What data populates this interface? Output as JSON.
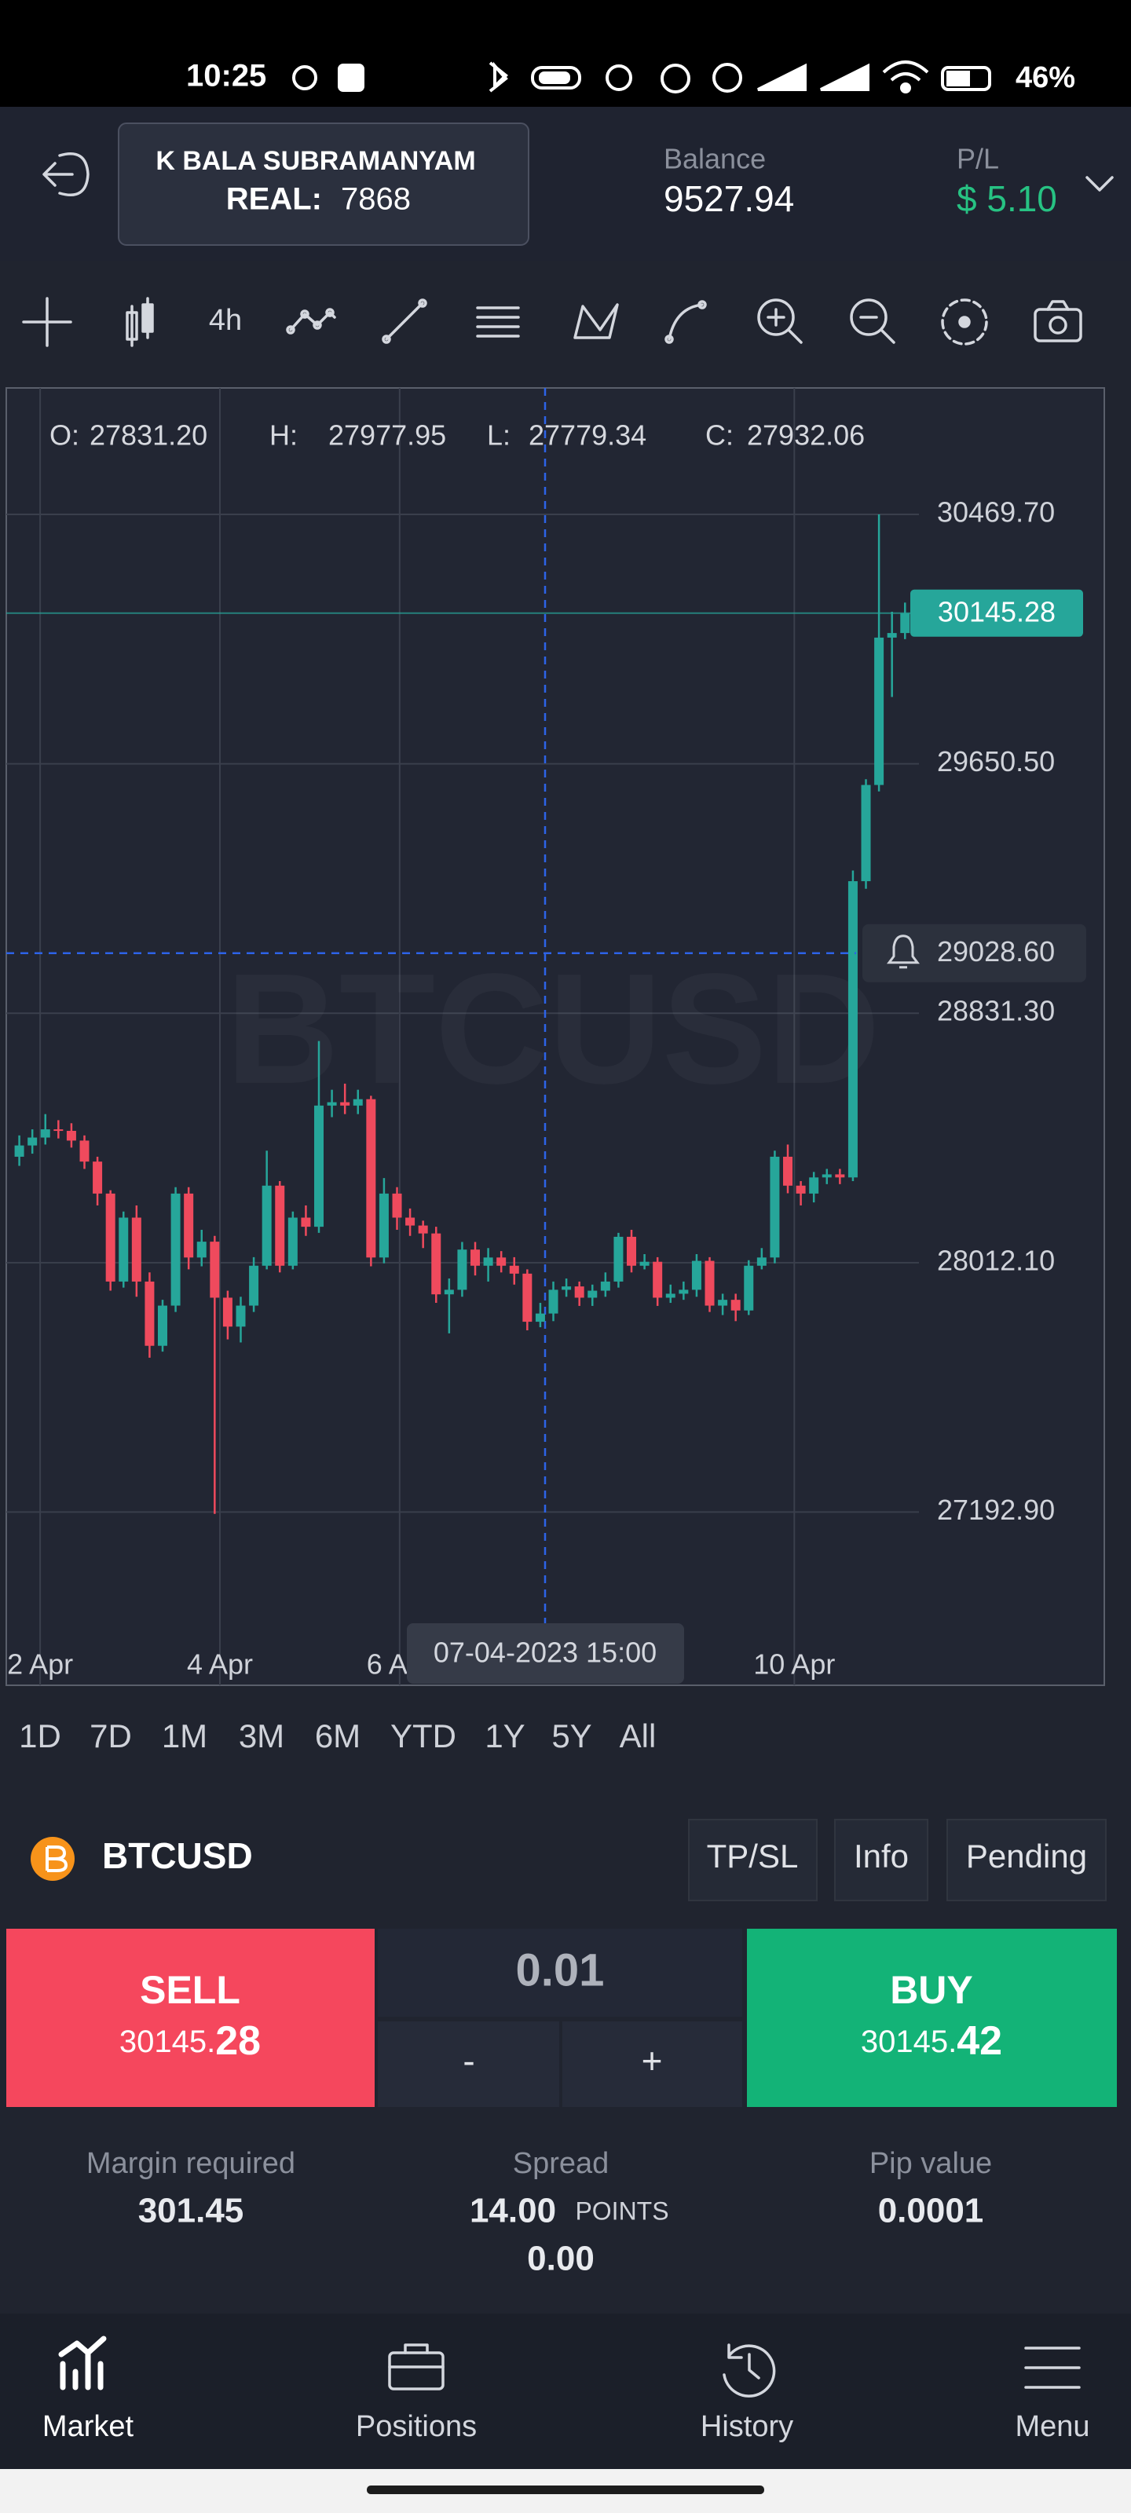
{
  "status_bar": {
    "time": "10:25",
    "battery": "46%"
  },
  "account": {
    "name": "K BALA SUBRAMANYAM",
    "type": "REAL:",
    "number": "7868",
    "balance_label": "Balance",
    "balance": "9527.94",
    "pl_label": "P/L",
    "pl": "$ 5.10"
  },
  "toolbar": {
    "timeframe": "4h"
  },
  "chart_data": {
    "type": "candlestick",
    "watermark": "BTCUSD",
    "ohlc": [
      {
        "label": "O:",
        "value": "27831.20"
      },
      {
        "label": "H:",
        "value": "27977.95"
      },
      {
        "label": "L:",
        "value": "27779.34"
      },
      {
        "label": "C:",
        "value": "27932.06"
      }
    ],
    "candles": [
      [
        28360,
        28430,
        28330,
        28397
      ],
      [
        28397,
        28450,
        28370,
        28423
      ],
      [
        28423,
        28500,
        28400,
        28450
      ],
      [
        28450,
        28480,
        28420,
        28445
      ],
      [
        28445,
        28470,
        28390,
        28413
      ],
      [
        28413,
        28430,
        28320,
        28344
      ],
      [
        28344,
        28360,
        28200,
        28239
      ],
      [
        28239,
        28250,
        27920,
        27950
      ],
      [
        27950,
        28180,
        27930,
        28160
      ],
      [
        28160,
        28200,
        27900,
        27950
      ],
      [
        27950,
        27980,
        27700,
        27739
      ],
      [
        27739,
        27890,
        27720,
        27871
      ],
      [
        27871,
        28260,
        27850,
        28239
      ],
      [
        28239,
        28260,
        27990,
        28029
      ],
      [
        28029,
        28120,
        28000,
        28081
      ],
      [
        28081,
        28100,
        27187,
        27897
      ],
      [
        27897,
        27920,
        27760,
        27802
      ],
      [
        27802,
        27900,
        27750,
        27871
      ],
      [
        27871,
        28030,
        27850,
        28002
      ],
      [
        28002,
        28380,
        27990,
        28265
      ],
      [
        28265,
        28280,
        27980,
        28002
      ],
      [
        28002,
        28180,
        27990,
        28160
      ],
      [
        28160,
        28200,
        28100,
        28130
      ],
      [
        28130,
        28740,
        28110,
        28528
      ],
      [
        28528,
        28580,
        28490,
        28539
      ],
      [
        28539,
        28600,
        28500,
        28528
      ],
      [
        28528,
        28580,
        28500,
        28549
      ],
      [
        28549,
        28560,
        28000,
        28029
      ],
      [
        28029,
        28290,
        28010,
        28239
      ],
      [
        28239,
        28260,
        28120,
        28160
      ],
      [
        28160,
        28190,
        28100,
        28134
      ],
      [
        28134,
        28150,
        28060,
        28108
      ],
      [
        28108,
        28130,
        27880,
        27908
      ],
      [
        27908,
        27960,
        27780,
        27923
      ],
      [
        27923,
        28080,
        27900,
        28055
      ],
      [
        28055,
        28080,
        27970,
        28002
      ],
      [
        28002,
        28060,
        27950,
        28029
      ],
      [
        28029,
        28050,
        27980,
        28002
      ],
      [
        28002,
        28030,
        27940,
        27976
      ],
      [
        27976,
        27990,
        27790,
        27818
      ],
      [
        27818,
        27880,
        27800,
        27845
      ],
      [
        27845,
        27950,
        27820,
        27923
      ],
      [
        27923,
        27960,
        27900,
        27934
      ],
      [
        27934,
        27950,
        27870,
        27897
      ],
      [
        27897,
        27940,
        27870,
        27920
      ],
      [
        27920,
        27980,
        27900,
        27950
      ],
      [
        27950,
        28110,
        27930,
        28097
      ],
      [
        28097,
        28120,
        27980,
        28002
      ],
      [
        28002,
        28040,
        27990,
        28015
      ],
      [
        28015,
        28030,
        27870,
        27897
      ],
      [
        27897,
        27940,
        27880,
        27910
      ],
      [
        27910,
        27950,
        27890,
        27923
      ],
      [
        27923,
        28040,
        27900,
        28018
      ],
      [
        28018,
        28030,
        27850,
        27871
      ],
      [
        27871,
        27910,
        27840,
        27890
      ],
      [
        27890,
        27910,
        27820,
        27855
      ],
      [
        27855,
        28020,
        27840,
        28002
      ],
      [
        28002,
        28060,
        27990,
        28029
      ],
      [
        28029,
        28380,
        28010,
        28360
      ],
      [
        28360,
        28400,
        28240,
        28265
      ],
      [
        28265,
        28280,
        28200,
        28239
      ],
      [
        28239,
        28310,
        28210,
        28292
      ],
      [
        28292,
        28320,
        28270,
        28302
      ],
      [
        28302,
        28320,
        28270,
        28292
      ],
      [
        28292,
        29300,
        28280,
        29265
      ],
      [
        29265,
        29600,
        29240,
        29581
      ],
      [
        29581,
        30469.7,
        29560,
        30065
      ],
      [
        30065,
        30150,
        29870,
        30080
      ],
      [
        30080,
        30180,
        30060,
        30145.28
      ]
    ],
    "xlim": [
      -1,
      83.3
    ],
    "xticks": [
      {
        "value": 1.6,
        "label": "2 Apr"
      },
      {
        "value": 15.4,
        "label": "4 Apr"
      },
      {
        "value": 29.2,
        "label": "6 Apr"
      },
      {
        "value": 59.5,
        "label": "10 Apr"
      }
    ],
    "ylim": [
      26624,
      30885
    ],
    "yticks": [
      {
        "value": 27192.9,
        "label": "27192.90"
      },
      {
        "value": 28012.1,
        "label": "28012.10"
      },
      {
        "value": 28831.3,
        "label": "28831.30"
      },
      {
        "value": 29650.5,
        "label": "29650.50"
      },
      {
        "value": 30469.7,
        "label": "30469.70"
      }
    ],
    "grid": true,
    "up_color": "#26a69a",
    "down_color": "#ef4a5d",
    "last_price": 30145.28,
    "alert_price": {
      "value": 29028.6,
      "label": "29028.60"
    },
    "crosshair_label": "07-04-2023 15:00"
  },
  "ranges": [
    "1D",
    "7D",
    "1M",
    "3M",
    "6M",
    "YTD",
    "1Y",
    "5Y",
    "All"
  ],
  "instrument": {
    "symbol": "BTCUSD",
    "tabs": [
      "TP/SL",
      "Info",
      "Pending"
    ]
  },
  "trade": {
    "sell_label": "SELL",
    "sell_price_main": "30145.",
    "sell_price_pips": "28",
    "quantity": "0.01",
    "minus": "-",
    "plus": "+",
    "buy_label": "BUY",
    "buy_price_main": "30145.",
    "buy_price_pips": "42"
  },
  "stats": {
    "margin_label": "Margin required",
    "margin": "301.45",
    "spread_label": "Spread",
    "spread": "14.00",
    "spread_unit": "POINTS",
    "spread_value": "0.00",
    "pip_label": "Pip value",
    "pip": "0.0001"
  },
  "nav": [
    "Market",
    "Positions",
    "History",
    "Menu"
  ]
}
